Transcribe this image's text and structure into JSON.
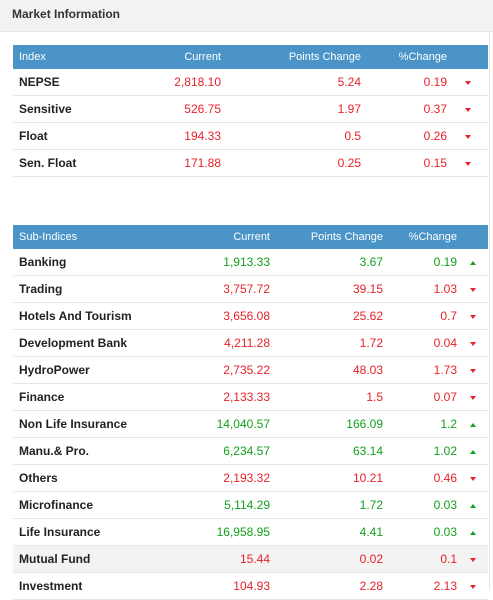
{
  "header": {
    "title": "Market Information"
  },
  "index_table": {
    "columns": [
      "Index",
      "Current",
      "Points Change",
      "%Change"
    ],
    "rows": [
      {
        "name": "NEPSE",
        "current": "2,818.10",
        "points": "5.24",
        "pct": "0.19",
        "dir": "down"
      },
      {
        "name": "Sensitive",
        "current": "526.75",
        "points": "1.97",
        "pct": "0.37",
        "dir": "down"
      },
      {
        "name": "Float",
        "current": "194.33",
        "points": "0.5",
        "pct": "0.26",
        "dir": "down"
      },
      {
        "name": "Sen. Float",
        "current": "171.88",
        "points": "0.25",
        "pct": "0.15",
        "dir": "down"
      }
    ]
  },
  "subindex_table": {
    "columns": [
      "Sub-Indices",
      "Current",
      "Points Change",
      "%Change"
    ],
    "rows": [
      {
        "name": "Banking",
        "current": "1,913.33",
        "points": "3.67",
        "pct": "0.19",
        "dir": "up"
      },
      {
        "name": "Trading",
        "current": "3,757.72",
        "points": "39.15",
        "pct": "1.03",
        "dir": "down"
      },
      {
        "name": "Hotels And Tourism",
        "current": "3,656.08",
        "points": "25.62",
        "pct": "0.7",
        "dir": "down"
      },
      {
        "name": "Development Bank",
        "current": "4,211.28",
        "points": "1.72",
        "pct": "0.04",
        "dir": "down"
      },
      {
        "name": "HydroPower",
        "current": "2,735.22",
        "points": "48.03",
        "pct": "1.73",
        "dir": "down"
      },
      {
        "name": "Finance",
        "current": "2,133.33",
        "points": "1.5",
        "pct": "0.07",
        "dir": "down"
      },
      {
        "name": "Non Life Insurance",
        "current": "14,040.57",
        "points": "166.09",
        "pct": "1.2",
        "dir": "up"
      },
      {
        "name": "Manu.& Pro.",
        "current": "6,234.57",
        "points": "63.14",
        "pct": "1.02",
        "dir": "up"
      },
      {
        "name": "Others",
        "current": "2,193.32",
        "points": "10.21",
        "pct": "0.46",
        "dir": "down"
      },
      {
        "name": "Microfinance",
        "current": "5,114.29",
        "points": "1.72",
        "pct": "0.03",
        "dir": "up"
      },
      {
        "name": "Life Insurance",
        "current": "16,958.95",
        "points": "4.41",
        "pct": "0.03",
        "dir": "up"
      },
      {
        "name": "Mutual Fund",
        "current": "15.44",
        "points": "0.02",
        "pct": "0.1",
        "dir": "down",
        "highlight": true
      },
      {
        "name": "Investment",
        "current": "104.93",
        "points": "2.28",
        "pct": "2.13",
        "dir": "down"
      }
    ]
  },
  "colors": {
    "header_blue": "#4a94c7",
    "down_red": "#e8222a",
    "up_green": "#12a11c"
  }
}
